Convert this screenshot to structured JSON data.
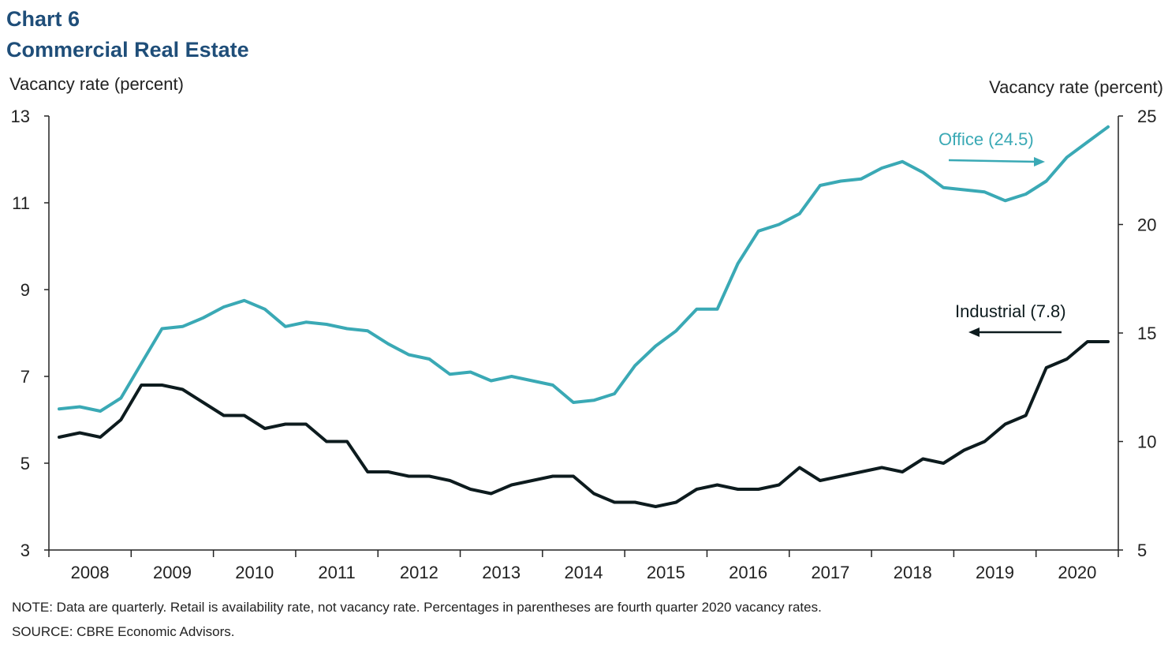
{
  "chart_title": "Chart 6",
  "chart_subtitle": "Commercial Real Estate",
  "note": "NOTE: Data are quarterly. Retail is availability rate, not vacancy rate. Percentages in parentheses are fourth quarter 2020 vacancy rates.",
  "source": "SOURCE: CBRE Economic Advisors.",
  "chart_data": {
    "type": "line",
    "title": "Commercial Real Estate",
    "x_categories": [
      "2008",
      "2009",
      "2010",
      "2011",
      "2012",
      "2013",
      "2014",
      "2015",
      "2016",
      "2017",
      "2018",
      "2019",
      "2020"
    ],
    "x_quarters": [
      "2008Q1",
      "2008Q2",
      "2008Q3",
      "2008Q4",
      "2009Q1",
      "2009Q2",
      "2009Q3",
      "2009Q4",
      "2010Q1",
      "2010Q2",
      "2010Q3",
      "2010Q4",
      "2011Q1",
      "2011Q2",
      "2011Q3",
      "2011Q4",
      "2012Q1",
      "2012Q2",
      "2012Q3",
      "2012Q4",
      "2013Q1",
      "2013Q2",
      "2013Q3",
      "2013Q4",
      "2014Q1",
      "2014Q2",
      "2014Q3",
      "2014Q4",
      "2015Q1",
      "2015Q2",
      "2015Q3",
      "2015Q4",
      "2016Q1",
      "2016Q2",
      "2016Q3",
      "2016Q4",
      "2017Q1",
      "2017Q2",
      "2017Q3",
      "2017Q4",
      "2018Q1",
      "2018Q2",
      "2018Q3",
      "2018Q4",
      "2019Q1",
      "2019Q2",
      "2019Q3",
      "2019Q4",
      "2020Q1",
      "2020Q2",
      "2020Q3",
      "2020Q4"
    ],
    "y_left": {
      "label": "Vacancy rate (percent)",
      "min": 3,
      "max": 13,
      "ticks": [
        3,
        5,
        7,
        9,
        11,
        13
      ]
    },
    "y_right": {
      "label": "Vacancy rate (percent)",
      "min": 5,
      "max": 25,
      "ticks": [
        5,
        10,
        15,
        20,
        25
      ]
    },
    "grid": false,
    "series": [
      {
        "name": "Office",
        "label": "Office (24.5)",
        "axis": "right",
        "color": "#3aa9b5",
        "values": [
          11.5,
          11.6,
          11.4,
          12.0,
          13.6,
          15.2,
          15.3,
          15.7,
          16.2,
          16.5,
          16.1,
          15.3,
          15.5,
          15.4,
          15.2,
          15.1,
          14.5,
          14.0,
          13.8,
          13.1,
          13.2,
          12.8,
          13.0,
          12.8,
          12.6,
          11.8,
          11.9,
          12.2,
          13.5,
          14.4,
          15.1,
          16.1,
          16.1,
          18.2,
          19.7,
          20.0,
          20.5,
          21.8,
          22.0,
          22.1,
          22.6,
          22.9,
          22.4,
          21.7,
          21.6,
          21.5,
          21.1,
          21.4,
          22.0,
          23.1,
          23.8,
          24.5
        ]
      },
      {
        "name": "Industrial",
        "label": "Industrial (7.8)",
        "axis": "left",
        "color": "#0d1b1e",
        "values": [
          5.6,
          5.7,
          5.6,
          6.0,
          6.8,
          6.8,
          6.7,
          6.4,
          6.1,
          6.1,
          5.8,
          5.9,
          5.9,
          5.5,
          5.5,
          4.8,
          4.8,
          4.7,
          4.7,
          4.6,
          4.4,
          4.3,
          4.5,
          4.6,
          4.7,
          4.7,
          4.3,
          4.1,
          4.1,
          4.0,
          4.1,
          4.4,
          4.5,
          4.4,
          4.4,
          4.5,
          4.9,
          4.6,
          4.7,
          4.8,
          4.9,
          4.8,
          5.1,
          5.0,
          5.3,
          5.5,
          5.9,
          6.1,
          7.2,
          7.4,
          7.8,
          7.8
        ]
      }
    ]
  }
}
